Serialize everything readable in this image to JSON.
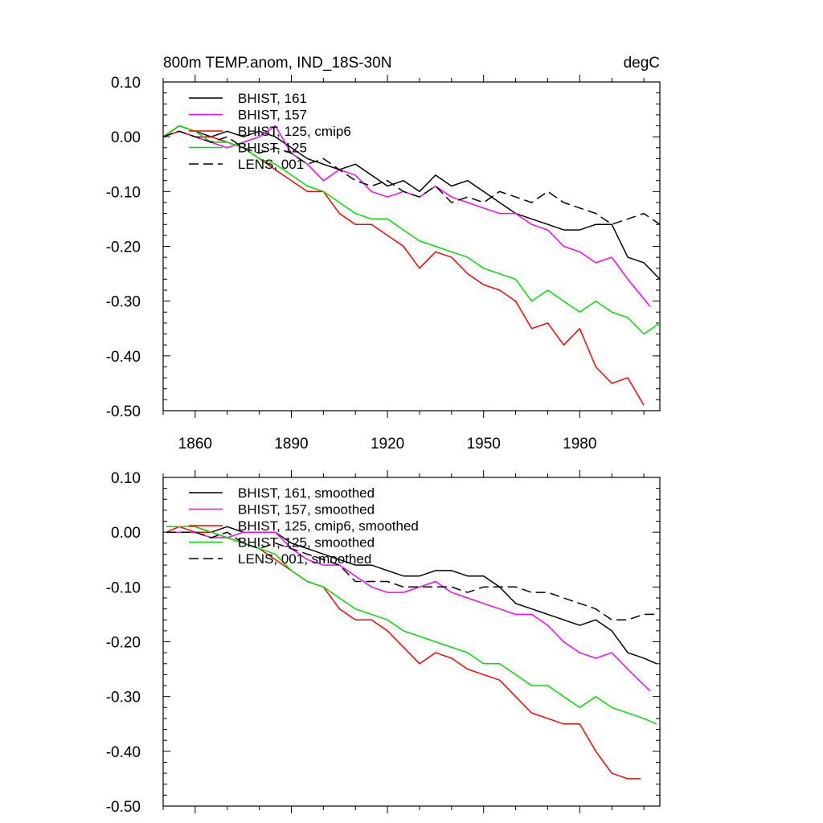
{
  "figure": {
    "title_left": "800m TEMP.anom, IND_18S-30N",
    "title_right": "degC"
  },
  "chart_data": [
    {
      "type": "line",
      "ylim": [
        -0.5,
        0.1
      ],
      "xlim": [
        1850,
        2005
      ],
      "yticks": [
        0.1,
        0.0,
        -0.1,
        -0.2,
        -0.3,
        -0.4,
        -0.5
      ],
      "ytick_labels": [
        "0.10",
        "0.00",
        "-0.10",
        "-0.20",
        "-0.30",
        "-0.40",
        "-0.50"
      ],
      "xticks": [
        1860,
        1890,
        1920,
        1950,
        1980
      ],
      "xtick_labels": [
        "1860",
        "1890",
        "1920",
        "1950",
        "1980"
      ],
      "grid": false,
      "legend_position": "top-left",
      "series": [
        {
          "name": "BHIST, 161",
          "color": "#000000",
          "dash": "solid",
          "x": [
            1850,
            1855,
            1860,
            1865,
            1870,
            1875,
            1880,
            1885,
            1890,
            1895,
            1900,
            1905,
            1910,
            1915,
            1920,
            1925,
            1930,
            1935,
            1940,
            1945,
            1950,
            1955,
            1960,
            1965,
            1970,
            1975,
            1980,
            1985,
            1990,
            1995,
            2000,
            2005
          ],
          "y": [
            0.0,
            0.02,
            0.01,
            0.0,
            0.01,
            0.0,
            0.01,
            0.0,
            -0.02,
            -0.04,
            -0.05,
            -0.06,
            -0.05,
            -0.07,
            -0.09,
            -0.08,
            -0.1,
            -0.07,
            -0.09,
            -0.08,
            -0.1,
            -0.12,
            -0.14,
            -0.15,
            -0.16,
            -0.17,
            -0.17,
            -0.16,
            -0.16,
            -0.22,
            -0.23,
            -0.26
          ]
        },
        {
          "name": "BHIST, 157",
          "color": "#ff00ff",
          "dash": "solid",
          "x": [
            1850,
            1855,
            1860,
            1865,
            1870,
            1875,
            1880,
            1885,
            1890,
            1895,
            1900,
            1905,
            1910,
            1915,
            1920,
            1925,
            1930,
            1935,
            1940,
            1945,
            1950,
            1955,
            1960,
            1965,
            1970,
            1975,
            1980,
            1985,
            1990,
            1995,
            2002
          ],
          "y": [
            0.0,
            0.01,
            0.0,
            -0.01,
            -0.02,
            -0.01,
            0.0,
            0.02,
            -0.03,
            -0.05,
            -0.08,
            -0.06,
            -0.07,
            -0.1,
            -0.11,
            -0.1,
            -0.11,
            -0.09,
            -0.11,
            -0.12,
            -0.13,
            -0.14,
            -0.14,
            -0.16,
            -0.17,
            -0.2,
            -0.21,
            -0.23,
            -0.22,
            -0.26,
            -0.31
          ]
        },
        {
          "name": "BHIST, 125, cmip6",
          "color": "#ff0000",
          "dash": "solid",
          "x": [
            1850,
            1855,
            1860,
            1865,
            1870,
            1875,
            1880,
            1885,
            1890,
            1895,
            1900,
            1905,
            1910,
            1915,
            1920,
            1925,
            1930,
            1935,
            1940,
            1945,
            1950,
            1955,
            1960,
            1965,
            1970,
            1975,
            1980,
            1985,
            1990,
            1995,
            2000
          ],
          "y": [
            0.0,
            0.01,
            0.0,
            0.0,
            -0.01,
            -0.02,
            -0.04,
            -0.06,
            -0.08,
            -0.1,
            -0.1,
            -0.14,
            -0.16,
            -0.16,
            -0.18,
            -0.2,
            -0.24,
            -0.21,
            -0.22,
            -0.25,
            -0.27,
            -0.28,
            -0.3,
            -0.35,
            -0.34,
            -0.38,
            -0.35,
            -0.42,
            -0.45,
            -0.44,
            -0.49
          ]
        },
        {
          "name": "BHIST, 125",
          "color": "#00dd00",
          "dash": "solid",
          "x": [
            1850,
            1855,
            1860,
            1865,
            1870,
            1875,
            1880,
            1885,
            1890,
            1895,
            1900,
            1905,
            1910,
            1915,
            1920,
            1925,
            1930,
            1935,
            1940,
            1945,
            1950,
            1955,
            1960,
            1965,
            1970,
            1975,
            1980,
            1985,
            1990,
            1995,
            2000,
            2005
          ],
          "y": [
            0.0,
            0.02,
            0.01,
            -0.01,
            -0.01,
            -0.02,
            -0.04,
            -0.05,
            -0.07,
            -0.09,
            -0.1,
            -0.12,
            -0.14,
            -0.15,
            -0.15,
            -0.17,
            -0.19,
            -0.2,
            -0.21,
            -0.22,
            -0.24,
            -0.25,
            -0.26,
            -0.3,
            -0.28,
            -0.3,
            -0.32,
            -0.3,
            -0.32,
            -0.33,
            -0.36,
            -0.34
          ]
        },
        {
          "name": "LENS, 001",
          "color": "#000000",
          "dash": "dashed",
          "x": [
            1850,
            1855,
            1860,
            1865,
            1870,
            1875,
            1880,
            1885,
            1890,
            1895,
            1900,
            1905,
            1910,
            1915,
            1920,
            1925,
            1930,
            1935,
            1940,
            1945,
            1950,
            1955,
            1960,
            1965,
            1970,
            1975,
            1980,
            1985,
            1990,
            1995,
            2000,
            2005
          ],
          "y": [
            0.0,
            0.01,
            0.0,
            -0.01,
            0.0,
            -0.02,
            -0.03,
            -0.02,
            -0.03,
            -0.05,
            -0.04,
            -0.06,
            -0.08,
            -0.09,
            -0.08,
            -0.1,
            -0.11,
            -0.09,
            -0.12,
            -0.11,
            -0.12,
            -0.1,
            -0.11,
            -0.12,
            -0.1,
            -0.12,
            -0.13,
            -0.14,
            -0.16,
            -0.15,
            -0.14,
            -0.16
          ]
        }
      ]
    },
    {
      "type": "line",
      "ylim": [
        -0.5,
        0.1
      ],
      "xlim": [
        1850,
        2005
      ],
      "yticks": [
        0.1,
        0.0,
        -0.1,
        -0.2,
        -0.3,
        -0.4,
        -0.5
      ],
      "ytick_labels": [
        "0.10",
        "0.00",
        "-0.10",
        "-0.20",
        "-0.30",
        "-0.40",
        "-0.50"
      ],
      "xticks": [
        1860,
        1890,
        1920,
        1950,
        1980
      ],
      "xtick_labels": [],
      "grid": false,
      "legend_position": "top-left",
      "series": [
        {
          "name": "BHIST, 161, smoothed",
          "color": "#000000",
          "dash": "solid",
          "x": [
            1851,
            1855,
            1860,
            1865,
            1870,
            1875,
            1880,
            1885,
            1890,
            1895,
            1900,
            1905,
            1910,
            1915,
            1920,
            1925,
            1930,
            1935,
            1940,
            1945,
            1950,
            1955,
            1960,
            1965,
            1970,
            1975,
            1980,
            1985,
            1990,
            1995,
            2000,
            2004
          ],
          "y": [
            0.01,
            0.01,
            0.01,
            0.0,
            0.01,
            0.0,
            0.0,
            0.0,
            -0.02,
            -0.03,
            -0.04,
            -0.05,
            -0.06,
            -0.06,
            -0.07,
            -0.08,
            -0.08,
            -0.07,
            -0.07,
            -0.08,
            -0.08,
            -0.1,
            -0.13,
            -0.14,
            -0.15,
            -0.16,
            -0.17,
            -0.16,
            -0.18,
            -0.22,
            -0.23,
            -0.24
          ]
        },
        {
          "name": "BHIST, 157, smoothed",
          "color": "#ff00ff",
          "dash": "solid",
          "x": [
            1851,
            1855,
            1860,
            1865,
            1870,
            1875,
            1880,
            1885,
            1890,
            1895,
            1900,
            1905,
            1910,
            1915,
            1920,
            1925,
            1930,
            1935,
            1940,
            1945,
            1950,
            1955,
            1960,
            1965,
            1970,
            1975,
            1980,
            1985,
            1990,
            1995,
            2002
          ],
          "y": [
            0.0,
            0.0,
            0.0,
            -0.01,
            -0.01,
            0.0,
            0.0,
            0.0,
            -0.03,
            -0.05,
            -0.06,
            -0.06,
            -0.08,
            -0.1,
            -0.11,
            -0.11,
            -0.1,
            -0.09,
            -0.11,
            -0.12,
            -0.13,
            -0.14,
            -0.15,
            -0.15,
            -0.17,
            -0.2,
            -0.22,
            -0.23,
            -0.22,
            -0.25,
            -0.29
          ]
        },
        {
          "name": "BHIST, 125, cmip6, smoothed",
          "color": "#ff0000",
          "dash": "solid",
          "x": [
            1851,
            1855,
            1860,
            1865,
            1870,
            1875,
            1880,
            1885,
            1890,
            1895,
            1900,
            1905,
            1910,
            1915,
            1920,
            1925,
            1930,
            1935,
            1940,
            1945,
            1950,
            1955,
            1960,
            1965,
            1970,
            1975,
            1980,
            1985,
            1990,
            1995,
            1999
          ],
          "y": [
            0.0,
            0.01,
            0.0,
            0.0,
            -0.01,
            -0.02,
            -0.03,
            -0.05,
            -0.07,
            -0.09,
            -0.1,
            -0.14,
            -0.16,
            -0.16,
            -0.18,
            -0.21,
            -0.24,
            -0.22,
            -0.23,
            -0.25,
            -0.26,
            -0.27,
            -0.3,
            -0.33,
            -0.34,
            -0.35,
            -0.35,
            -0.4,
            -0.44,
            -0.45,
            -0.45
          ]
        },
        {
          "name": "BHIST, 125, smoothed",
          "color": "#00dd00",
          "dash": "solid",
          "x": [
            1851,
            1855,
            1860,
            1865,
            1870,
            1875,
            1880,
            1885,
            1890,
            1895,
            1900,
            1905,
            1910,
            1915,
            1920,
            1925,
            1930,
            1935,
            1940,
            1945,
            1950,
            1955,
            1960,
            1965,
            1970,
            1975,
            1980,
            1985,
            1990,
            1995,
            2000,
            2004
          ],
          "y": [
            0.01,
            0.01,
            0.01,
            0.0,
            -0.01,
            -0.02,
            -0.03,
            -0.04,
            -0.07,
            -0.09,
            -0.1,
            -0.12,
            -0.14,
            -0.15,
            -0.16,
            -0.18,
            -0.19,
            -0.2,
            -0.21,
            -0.22,
            -0.24,
            -0.24,
            -0.26,
            -0.28,
            -0.28,
            -0.3,
            -0.32,
            -0.3,
            -0.32,
            -0.33,
            -0.34,
            -0.35
          ]
        },
        {
          "name": "LENS, 001, smoothed",
          "color": "#000000",
          "dash": "dashed",
          "x": [
            1851,
            1855,
            1860,
            1865,
            1870,
            1875,
            1880,
            1885,
            1890,
            1895,
            1900,
            1905,
            1910,
            1915,
            1920,
            1925,
            1930,
            1935,
            1940,
            1945,
            1950,
            1955,
            1960,
            1965,
            1970,
            1975,
            1980,
            1985,
            1990,
            1995,
            2000,
            2004
          ],
          "y": [
            0.0,
            0.0,
            0.0,
            -0.01,
            0.0,
            -0.02,
            -0.03,
            -0.02,
            -0.03,
            -0.04,
            -0.05,
            -0.06,
            -0.09,
            -0.09,
            -0.09,
            -0.1,
            -0.1,
            -0.1,
            -0.1,
            -0.11,
            -0.1,
            -0.1,
            -0.1,
            -0.11,
            -0.11,
            -0.12,
            -0.13,
            -0.14,
            -0.16,
            -0.16,
            -0.15,
            -0.15
          ]
        }
      ]
    }
  ]
}
